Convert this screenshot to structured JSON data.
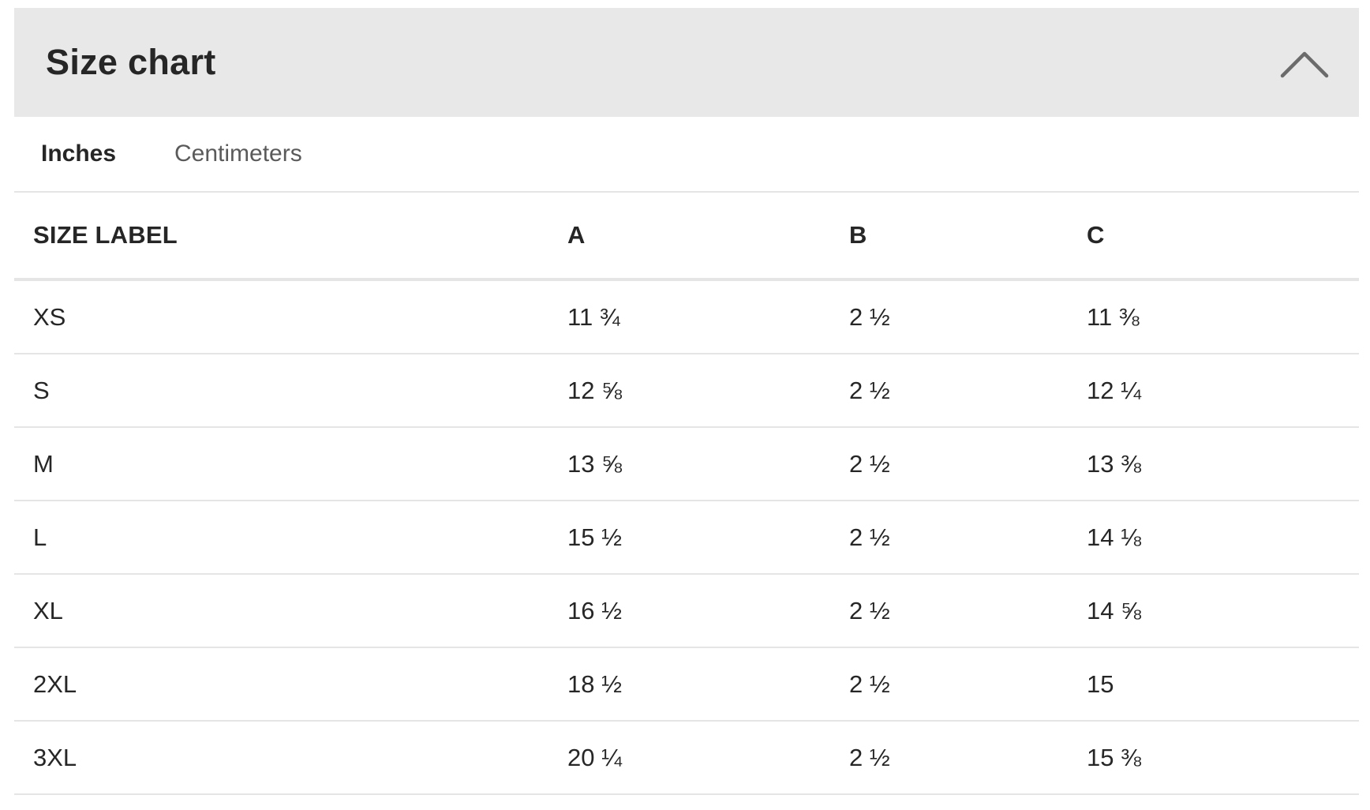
{
  "header": {
    "title": "Size chart"
  },
  "tabs": [
    {
      "label": "Inches",
      "active": true
    },
    {
      "label": "Centimeters",
      "active": false
    }
  ],
  "table": {
    "columns": [
      "SIZE LABEL",
      "A",
      "B",
      "C"
    ],
    "rows": [
      [
        "XS",
        "11 ¾",
        "2 ½",
        "11 ⅜"
      ],
      [
        "S",
        "12 ⅝",
        "2 ½",
        "12 ¼"
      ],
      [
        "M",
        "13 ⅝",
        "2 ½",
        "13 ⅜"
      ],
      [
        "L",
        "15 ½",
        "2 ½",
        "14 ⅛"
      ],
      [
        "XL",
        "16 ½",
        "2 ½",
        "14 ⅝"
      ],
      [
        "2XL",
        "18 ½",
        "2 ½",
        "15"
      ],
      [
        "3XL",
        "20 ¼",
        "2 ½",
        "15 ⅜"
      ]
    ]
  },
  "icons": {
    "collapse": "chevron-up-icon"
  },
  "colors": {
    "header_bg": "#e8e8e8",
    "text": "#262626",
    "inactive_tab": "#5a5a5a",
    "divider": "#e5e5e5"
  }
}
